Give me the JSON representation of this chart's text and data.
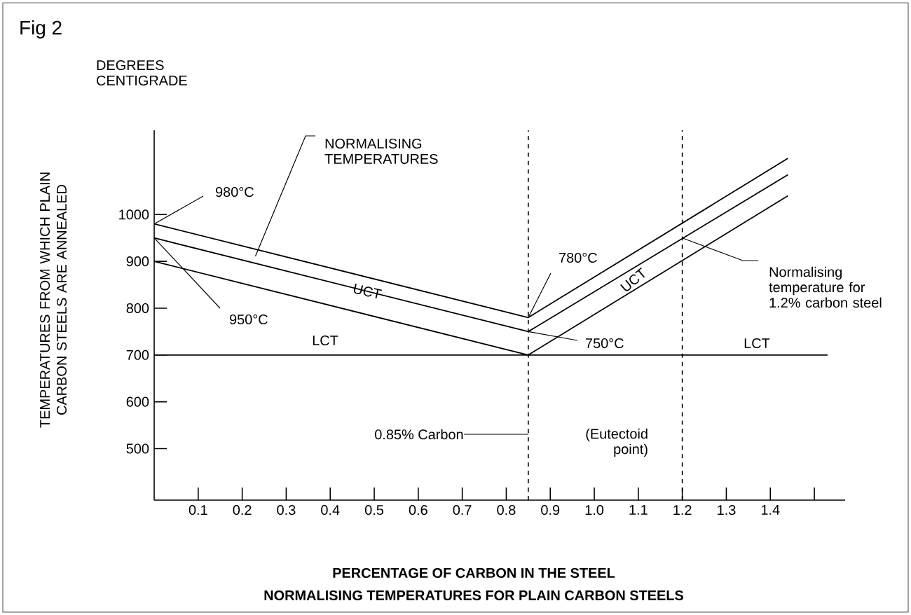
{
  "chart_data": {
    "type": "line",
    "title": "Fig 2",
    "subtitle": "NORMALISING TEMPERATURES FOR PLAIN CARBON STEELS",
    "xlabel": "PERCENTAGE OF CARBON IN THE STEEL",
    "ylabel": "TEMPERATURES FROM WHICH PLAIN CARBON STEELS ARE ANNEALED",
    "xlim": [
      0,
      1.57
    ],
    "ylim": [
      390,
      1180
    ],
    "xticks": [
      0.1,
      0.2,
      0.3,
      0.4,
      0.5,
      0.6,
      0.7,
      0.8,
      0.9,
      {
        "value": 1.0,
        "label": "1.0"
      },
      1.1,
      1.2,
      1.3,
      1.4,
      {
        "value": 1.5,
        "label": null
      }
    ],
    "yticks": [
      500,
      600,
      700,
      800,
      900,
      1000
    ],
    "grid": false,
    "marker": "none",
    "line_style": "solid",
    "series": [
      {
        "color": "#000000",
        "x": [
          0,
          0.85,
          1.44
        ],
        "values": [
          980,
          780,
          1120
        ]
      },
      {
        "color": "#000000",
        "x": [
          0,
          0.85,
          1.44
        ],
        "values": [
          950,
          750,
          1085
        ]
      },
      {
        "name": "UCT",
        "color": "#000000",
        "x": [
          0,
          0.85,
          1.44
        ],
        "values": [
          900,
          700,
          1040
        ]
      },
      {
        "name": "LCT",
        "color": "#000000",
        "x": [
          0,
          1.53
        ],
        "values": [
          700,
          700
        ]
      }
    ],
    "ref_lines": [
      {
        "axis": "x",
        "value": 0.85,
        "line_style": "dashed",
        "color": "#000000"
      },
      {
        "axis": "x",
        "value": 1.2,
        "line_style": "dashed",
        "color": "#000000"
      }
    ],
    "annotations": [
      "DEGREES CENTIGRADE",
      {
        "text": "980°C",
        "x": 0,
        "y": 980
      },
      {
        "text": "950°C",
        "x": 0,
        "y": 950
      },
      {
        "text": "NORMALISING TEMPERATURES",
        "x": 0.23,
        "y": 911
      },
      {
        "text": "780°C",
        "x": 0.85,
        "y": 780
      },
      {
        "text": "750°C",
        "x": 0.85,
        "y": 750
      },
      "0.85% Carbon",
      "(Eutectoid point)",
      {
        "text": "Normalising temperature for 1.2% carbon steel",
        "x": 1.2,
        "y": 950
      }
    ]
  }
}
